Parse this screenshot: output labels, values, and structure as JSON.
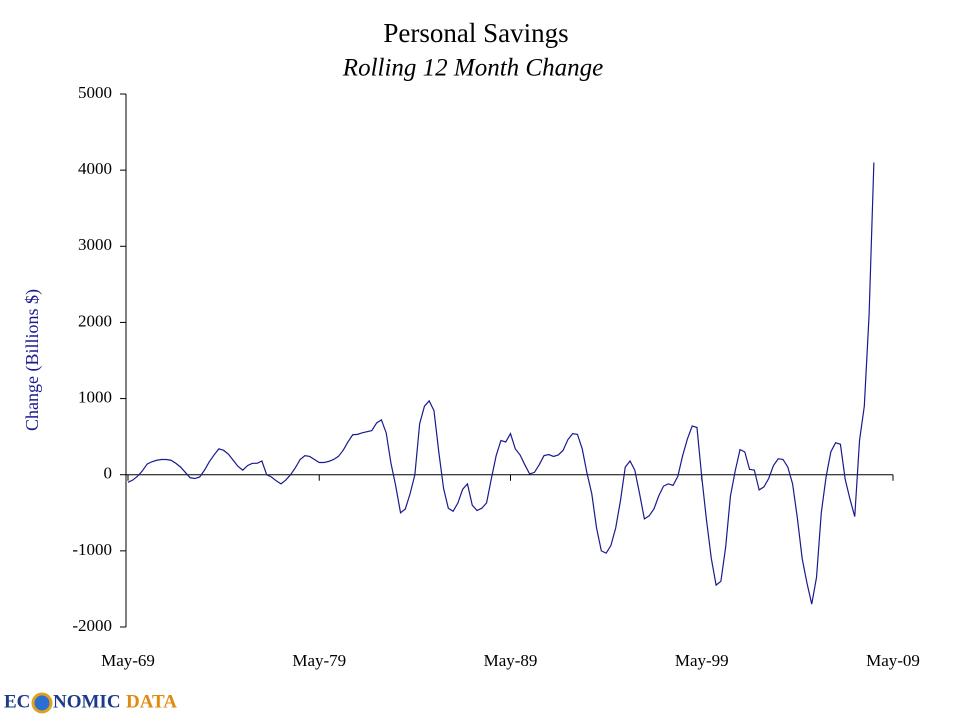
{
  "chart_data": {
    "type": "line",
    "title": "Personal Savings",
    "subtitle": "Rolling 12 Month Change",
    "y_label": "Change (Billions $)",
    "categories": [
      "May-69",
      null,
      null,
      null,
      null,
      null,
      null,
      null,
      null,
      null,
      null,
      null,
      null,
      null,
      null,
      null,
      null,
      null,
      null,
      null,
      null,
      null,
      null,
      null,
      null,
      null,
      null,
      null,
      null,
      null,
      null,
      null,
      null,
      null,
      null,
      null,
      null,
      null,
      null,
      null,
      "May-79",
      null,
      null,
      null,
      null,
      null,
      null,
      null,
      null,
      null,
      null,
      null,
      null,
      null,
      null,
      null,
      null,
      null,
      null,
      null,
      null,
      null,
      null,
      null,
      null,
      null,
      null,
      null,
      null,
      null,
      null,
      null,
      null,
      null,
      null,
      null,
      null,
      null,
      null,
      null,
      "May-89",
      null,
      null,
      null,
      null,
      null,
      null,
      null,
      null,
      null,
      null,
      null,
      null,
      null,
      null,
      null,
      null,
      null,
      null,
      null,
      null,
      null,
      null,
      null,
      null,
      null,
      null,
      null,
      null,
      null,
      null,
      null,
      null,
      null,
      null,
      null,
      null,
      null,
      null,
      null,
      "May-99",
      null,
      null,
      null,
      null,
      null,
      null,
      null,
      null,
      null,
      null,
      null,
      null,
      null,
      null,
      null,
      null,
      null,
      null,
      null,
      null,
      null,
      null,
      null,
      null,
      null,
      null,
      null,
      null,
      null,
      null,
      null,
      null,
      null,
      null,
      null,
      null,
      null,
      null,
      null,
      "May-09"
    ],
    "series": [
      {
        "name": "Personal Savings",
        "color": "#1a1a8c",
        "values": [
          -100,
          -70,
          -20,
          50,
          140,
          170,
          190,
          200,
          200,
          190,
          150,
          100,
          30,
          -40,
          -50,
          -30,
          60,
          170,
          260,
          340,
          320,
          270,
          190,
          110,
          60,
          120,
          150,
          150,
          180,
          0,
          -30,
          -80,
          -120,
          -70,
          0,
          90,
          200,
          250,
          240,
          200,
          160,
          160,
          175,
          200,
          240,
          320,
          430,
          525,
          530,
          550,
          565,
          580,
          680,
          720,
          550,
          150,
          -150,
          -500,
          -450,
          -250,
          0,
          670,
          900,
          970,
          840,
          300,
          -180,
          -440,
          -480,
          -370,
          -190,
          -120,
          -400,
          -470,
          -440,
          -370,
          -50,
          250,
          450,
          430,
          540,
          340,
          260,
          130,
          10,
          30,
          130,
          250,
          265,
          240,
          260,
          320,
          460,
          540,
          530,
          340,
          20,
          -250,
          -700,
          -1000,
          -1030,
          -930,
          -700,
          -340,
          100,
          180,
          60,
          -250,
          -580,
          -540,
          -450,
          -280,
          -150,
          -120,
          -140,
          -20,
          250,
          470,
          640,
          620,
          -30,
          -600,
          -1100,
          -1450,
          -1400,
          -950,
          -280,
          50,
          330,
          300,
          70,
          60,
          -200,
          -160,
          -50,
          120,
          210,
          200,
          100,
          -120,
          -570,
          -1100,
          -1420,
          -1700,
          -1350,
          -500,
          -30,
          300,
          420,
          400,
          -60,
          -320,
          -550,
          450,
          900,
          2100,
          4100,
          null,
          null,
          null,
          null
        ]
      }
    ],
    "ylim": [
      -2000,
      5000
    ],
    "yticks": [
      -2000,
      -1000,
      0,
      1000,
      2000,
      3000,
      4000,
      5000
    ],
    "grid": false
  },
  "logo": {
    "parts": [
      "EC",
      "NOMIC",
      "DATA"
    ]
  }
}
